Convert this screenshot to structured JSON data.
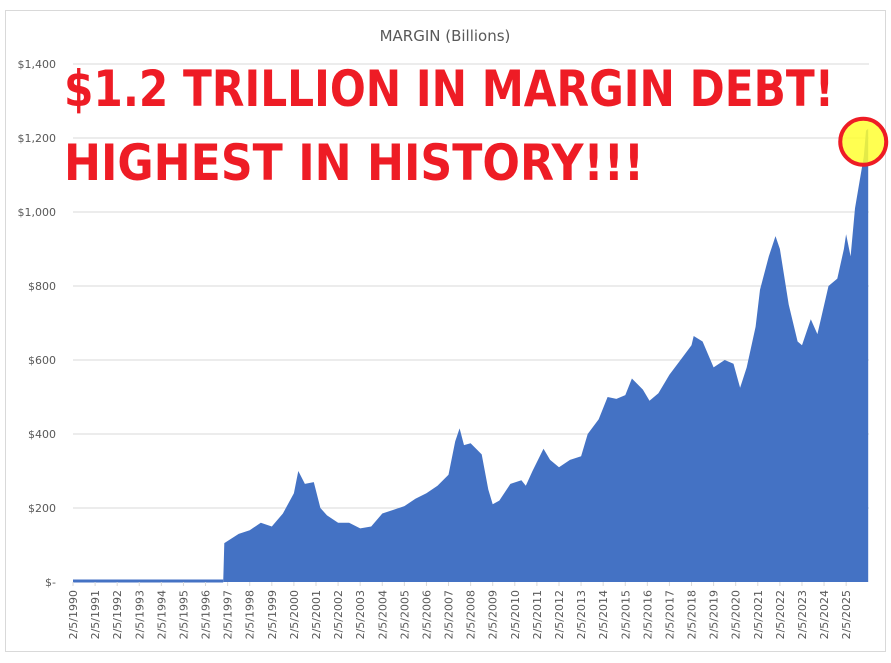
{
  "chart_data": {
    "type": "area",
    "title": "MARGIN (Billions)",
    "xlabel": "",
    "ylabel": "",
    "ylim": [
      0,
      1400
    ],
    "yticks": [
      0,
      200,
      400,
      600,
      800,
      1000,
      1200,
      1400
    ],
    "ytick_labels": [
      "$-",
      "$200",
      "$400",
      "$600",
      "$800",
      "$1,000",
      "$1,200",
      "$1,400"
    ],
    "xtick_labels": [
      "2/5/1990",
      "2/5/1991",
      "2/5/1992",
      "2/5/1993",
      "2/5/1994",
      "2/5/1995",
      "2/5/1996",
      "2/5/1997",
      "2/5/1998",
      "2/5/1999",
      "2/5/2000",
      "2/5/2001",
      "2/5/2002",
      "2/5/2003",
      "2/5/2004",
      "2/5/2005",
      "2/5/2006",
      "2/5/2007",
      "2/5/2008",
      "2/5/2009",
      "2/5/2010",
      "2/5/2011",
      "2/5/2012",
      "2/5/2013",
      "2/5/2014",
      "2/5/2015",
      "2/5/2016",
      "2/5/2017",
      "2/5/2018",
      "2/5/2019",
      "2/5/2020",
      "2/5/2021",
      "2/5/2022",
      "2/5/2023",
      "2/5/2024",
      "2/5/2025"
    ],
    "grid": true,
    "legend": "none",
    "series_color": "#4472c4",
    "x": [
      1990.0,
      1996.8,
      1996.85,
      1997.5,
      1998.0,
      1998.5,
      1999.0,
      1999.5,
      2000.0,
      2000.2,
      2000.5,
      2000.9,
      2001.2,
      2001.5,
      2002.0,
      2002.5,
      2003.0,
      2003.5,
      2004.0,
      2004.5,
      2005.0,
      2005.5,
      2006.0,
      2006.5,
      2007.0,
      2007.3,
      2007.5,
      2007.7,
      2008.0,
      2008.5,
      2008.8,
      2009.0,
      2009.3,
      2009.8,
      2010.3,
      2010.5,
      2010.8,
      2011.3,
      2011.6,
      2012.0,
      2012.5,
      2013.0,
      2013.3,
      2013.8,
      2014.2,
      2014.6,
      2015.0,
      2015.3,
      2015.8,
      2016.1,
      2016.5,
      2017.0,
      2017.5,
      2018.0,
      2018.1,
      2018.5,
      2019.0,
      2019.5,
      2019.9,
      2020.2,
      2020.5,
      2020.9,
      2021.1,
      2021.5,
      2021.8,
      2022.0,
      2022.4,
      2022.8,
      2023.0,
      2023.4,
      2023.7,
      2024.2,
      2024.6,
      2024.9,
      2025.0,
      2025.2,
      2025.4,
      2025.6,
      2025.8,
      2025.9,
      2026.0
    ],
    "values": [
      0,
      0,
      105,
      130,
      140,
      160,
      150,
      185,
      240,
      300,
      265,
      270,
      200,
      180,
      160,
      160,
      145,
      150,
      185,
      195,
      205,
      225,
      240,
      260,
      290,
      380,
      415,
      370,
      375,
      345,
      250,
      210,
      220,
      265,
      275,
      260,
      300,
      360,
      330,
      310,
      330,
      340,
      400,
      440,
      500,
      495,
      505,
      550,
      520,
      490,
      510,
      560,
      600,
      640,
      665,
      650,
      580,
      600,
      590,
      525,
      580,
      690,
      790,
      880,
      935,
      900,
      750,
      650,
      640,
      710,
      670,
      800,
      820,
      900,
      940,
      880,
      1010,
      1080,
      1150,
      1220,
      1225
    ],
    "annotations": {
      "headline_1": "$1.2 TRILLION IN MARGIN DEBT!",
      "headline_2": "HIGHEST IN HISTORY!!!",
      "highlight_color": "#ffff33",
      "highlight_ring_color": "#ee1c25",
      "headline_color": "#ee1c25"
    }
  }
}
